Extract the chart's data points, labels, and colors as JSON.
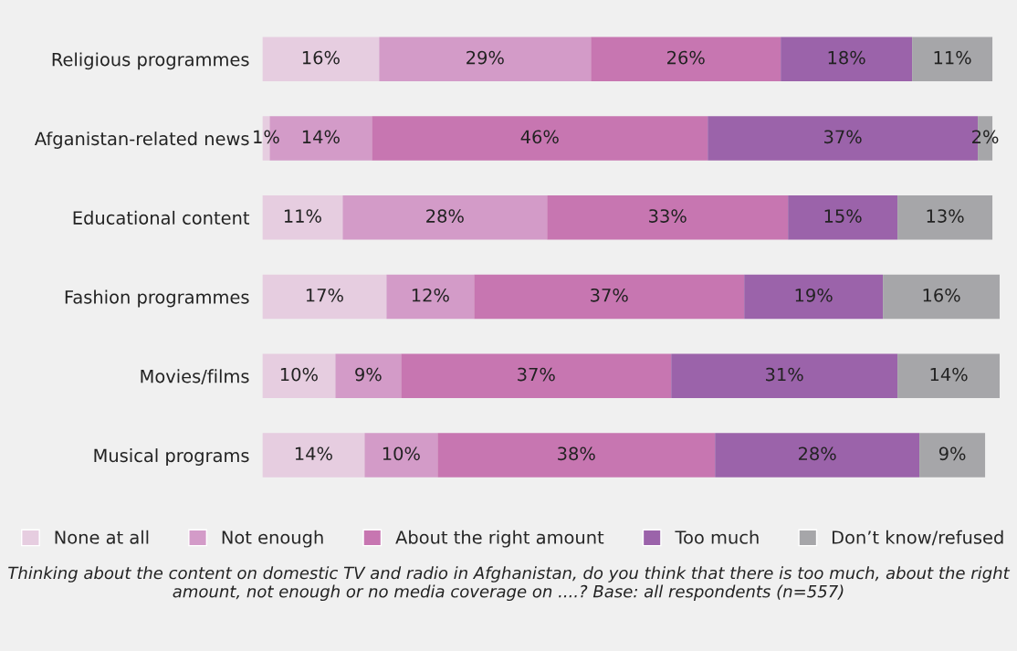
{
  "chart_data": {
    "type": "bar",
    "orientation": "horizontal",
    "stacked": true,
    "legend": "bottom",
    "grid": false,
    "categories": [
      "Religious programmes",
      "Afganistan-related news",
      "Educational content",
      "Fashion programmes",
      "Movies/films",
      "Musical programs"
    ],
    "series": [
      {
        "name": "None at all",
        "color": "#e6cde0",
        "values": [
          16,
          1,
          11,
          17,
          10,
          14
        ],
        "value_labels": [
          "16%",
          "1%",
          "11%",
          "17%",
          "10%",
          "14%"
        ]
      },
      {
        "name": "Not enough",
        "color": "#d39bc8",
        "values": [
          29,
          14,
          28,
          12,
          9,
          10
        ],
        "value_labels": [
          "29%",
          "14%",
          "28%",
          "12%",
          "9%",
          "10%"
        ]
      },
      {
        "name": "About the right amount",
        "color": "#c776b1",
        "values": [
          26,
          46,
          33,
          37,
          37,
          38
        ],
        "value_labels": [
          "26%",
          "46%",
          "33%",
          "37%",
          "37%",
          "38%"
        ]
      },
      {
        "name": "Too much",
        "color": "#9b63aa",
        "values": [
          18,
          37,
          15,
          19,
          31,
          28
        ],
        "value_labels": [
          "18%",
          "37%",
          "15%",
          "19%",
          "31%",
          "28%"
        ]
      },
      {
        "name": "Don’t know/refused",
        "color": "#a6a6a9",
        "values": [
          11,
          2,
          13,
          16,
          14,
          9
        ],
        "value_labels": [
          "11%",
          "2%",
          "13%",
          "16%",
          "14%",
          "9%"
        ]
      }
    ],
    "annotations": [
      "Thinking about the content on domestic TV and radio in Afghanistan, do you think that there is too much, about the right amount, not enough or no media coverage on ....? Base: all respondents (n=557)"
    ]
  }
}
